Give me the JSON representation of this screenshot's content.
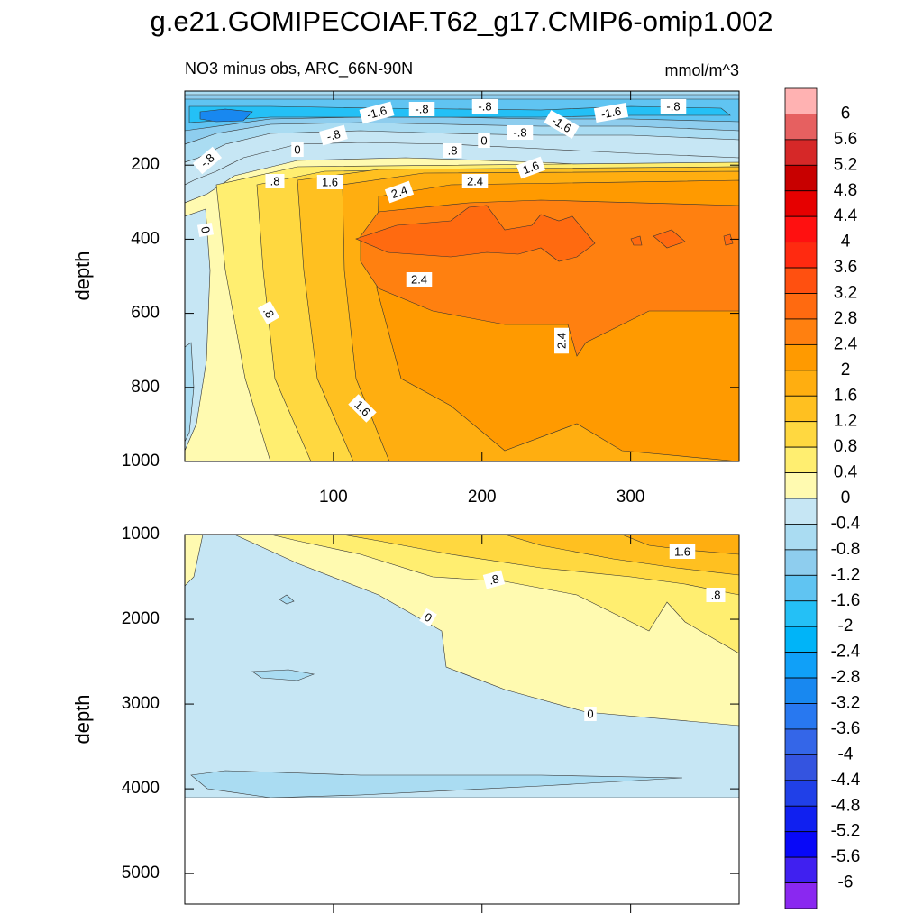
{
  "chart_data": {
    "type": "contour",
    "title": "g.e21.GOMIPECOIAF.T62_g17.CMIP6-omip1.002",
    "panels": [
      {
        "subtitle_left": "NO3 minus obs, ARC_66N-90N",
        "subtitle_right": "mmol/m^3",
        "ylabel": "depth",
        "xlim": [
          0,
          373
        ],
        "xticks": [
          100,
          200,
          300
        ],
        "ylim": [
          0,
          1000
        ],
        "yticks": [
          200,
          400,
          600,
          800,
          1000
        ],
        "contour_labels": [
          {
            "value": -1.6,
            "label": "-1.6"
          },
          {
            "value": -0.8,
            "label": "-.8"
          },
          {
            "value": -0.8,
            "label": "-.8"
          },
          {
            "value": -1.6,
            "label": "-1.6"
          },
          {
            "value": -1.6,
            "label": "-1.6"
          },
          {
            "value": -0.8,
            "label": "-.8"
          },
          {
            "value": -0.8,
            "label": "-.8"
          },
          {
            "value": -0.8,
            "label": "-.8"
          },
          {
            "value": 0,
            "label": "0"
          },
          {
            "value": 0,
            "label": "0"
          },
          {
            "value": 0.8,
            "label": ".8"
          },
          {
            "value": -0.8,
            "label": "-.8"
          },
          {
            "value": 0.8,
            "label": ".8"
          },
          {
            "value": 1.6,
            "label": "1.6"
          },
          {
            "value": 1.6,
            "label": "1.6"
          },
          {
            "value": 2.4,
            "label": "2.4"
          },
          {
            "value": 2.4,
            "label": "2.4"
          },
          {
            "value": 0,
            "label": "0"
          },
          {
            "value": 2.4,
            "label": "2.4"
          },
          {
            "value": 0.8,
            "label": ".8"
          },
          {
            "value": 2.4,
            "label": "2.4"
          },
          {
            "value": 1.6,
            "label": "1.6"
          }
        ]
      },
      {
        "ylabel": "depth",
        "xlim": [
          0,
          373
        ],
        "xticks": [
          100,
          200,
          300
        ],
        "ylim": [
          1000,
          5360
        ],
        "yticks": [
          1000,
          2000,
          3000,
          4000,
          5000
        ],
        "contour_labels": [
          {
            "value": 1.6,
            "label": "1.6"
          },
          {
            "value": 0.8,
            "label": ".8"
          },
          {
            "value": 0.8,
            "label": ".8"
          },
          {
            "value": 0,
            "label": "0"
          },
          {
            "value": 0,
            "label": "0"
          }
        ]
      }
    ],
    "colorbar": {
      "labels": [
        6,
        5.6,
        5.2,
        4.8,
        4.4,
        4,
        3.6,
        3.2,
        2.8,
        2.4,
        2,
        1.6,
        1.2,
        0.8,
        0.4,
        0,
        -0.4,
        -0.8,
        -1.2,
        -1.6,
        -2,
        -2.4,
        -2.8,
        -3.2,
        -3.6,
        -4,
        -4.4,
        -4.8,
        -5.2,
        -5.6,
        -6
      ],
      "colors": [
        "#ffb2b2",
        "#e66060",
        "#d62828",
        "#c80000",
        "#e60000",
        "#ff1010",
        "#ff2a10",
        "#ff5010",
        "#ff6a10",
        "#ff8010",
        "#ff9a00",
        "#ffae10",
        "#ffc020",
        "#ffd840",
        "#ffee70",
        "#fffab0",
        "#c6e6f4",
        "#aadcf2",
        "#8ecdee",
        "#60c4f2",
        "#24c0f6",
        "#00b4f8",
        "#10a0f8",
        "#1888f0",
        "#2878f0",
        "#3466e8",
        "#3454e0",
        "#2040e8",
        "#1020f0",
        "#0808f8",
        "#4020f0",
        "#8a28f0"
      ]
    }
  }
}
